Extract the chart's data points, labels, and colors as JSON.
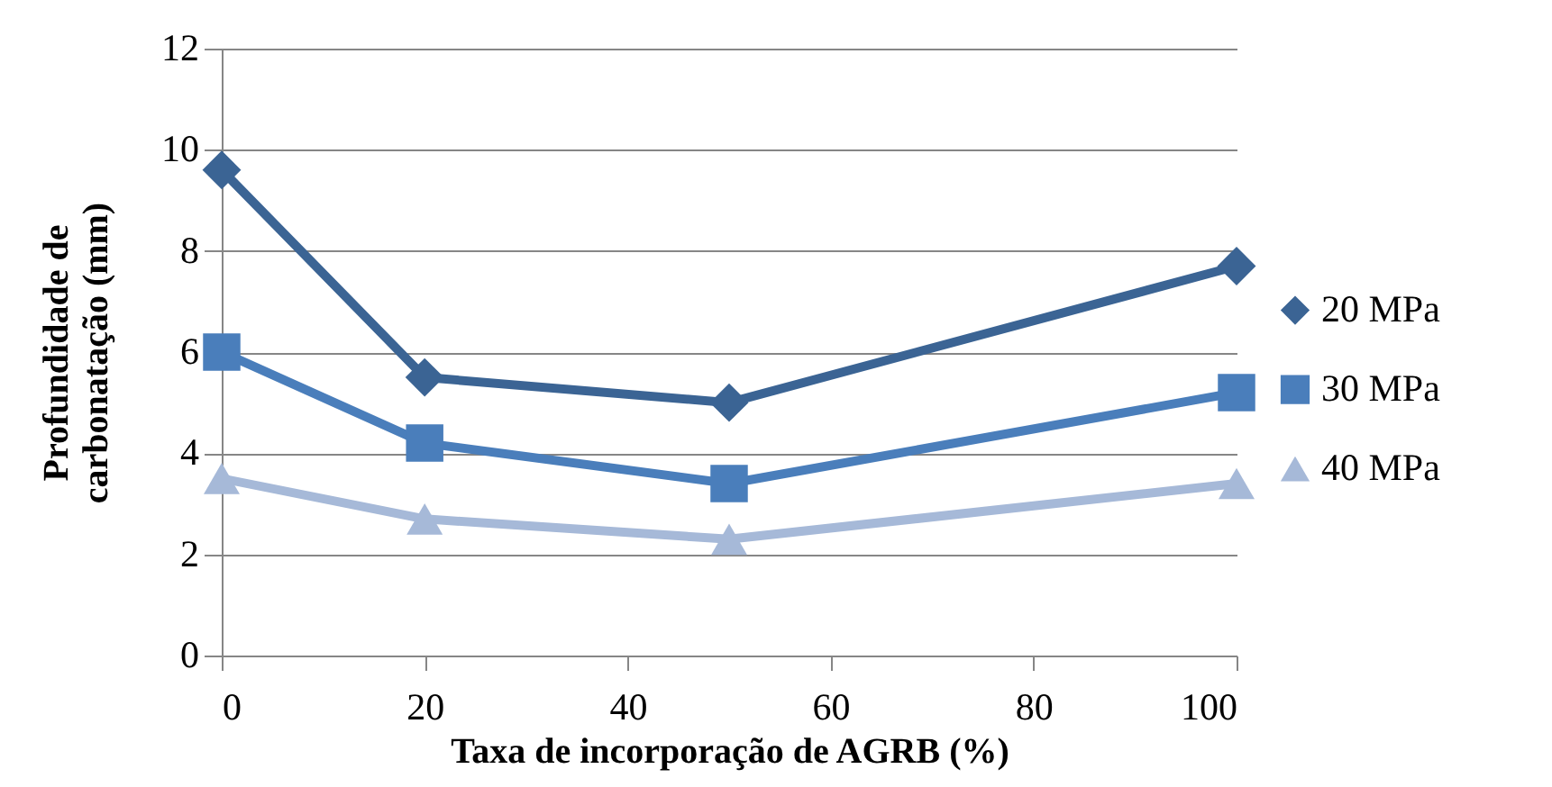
{
  "chart_data": {
    "type": "line",
    "xlabel": "Taxa de incorporação de AGRB (%)",
    "ylabel": "Profundidade de carbonatação (mm)",
    "x": [
      0,
      20,
      50,
      100
    ],
    "series": [
      {
        "name": "20 MPa",
        "color": "#3b6494",
        "marker": "diamond",
        "values": [
          9.6,
          5.5,
          5.0,
          7.7
        ]
      },
      {
        "name": "30 MPa",
        "color": "#4a7ebb",
        "marker": "square",
        "values": [
          6.0,
          4.2,
          3.4,
          5.2
        ]
      },
      {
        "name": "40 MPa",
        "color": "#a6b9d8",
        "marker": "triangle",
        "values": [
          3.5,
          2.7,
          2.3,
          3.4
        ]
      }
    ],
    "xlim": [
      0,
      100
    ],
    "xticks": [
      0,
      20,
      40,
      60,
      80,
      100
    ],
    "ylim": [
      0,
      12
    ],
    "yticks": [
      0,
      2,
      4,
      6,
      8,
      10,
      12
    ],
    "grid": "y",
    "legend": "right",
    "line_style": "solid"
  }
}
